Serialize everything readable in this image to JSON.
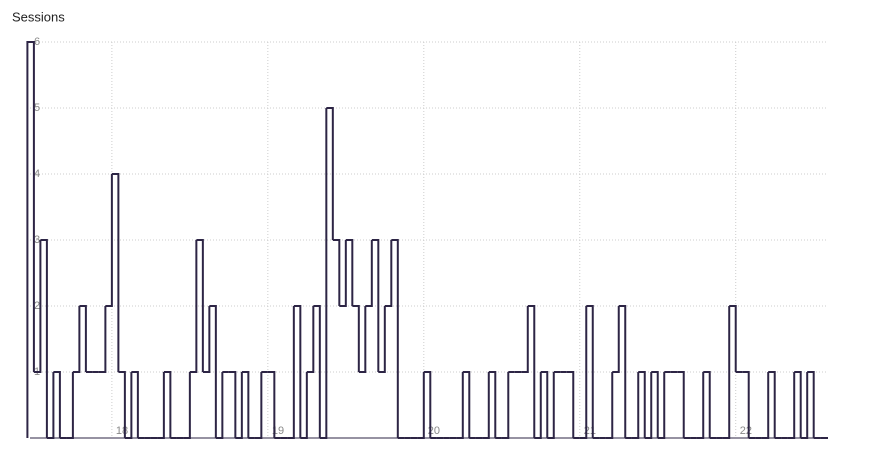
{
  "chart_data": {
    "type": "step",
    "title": "Sessions",
    "x": [
      11,
      12,
      13,
      14,
      15,
      16,
      17,
      18,
      19,
      20,
      21,
      22,
      23,
      24,
      25,
      26,
      27,
      28,
      29,
      30,
      31,
      32,
      33,
      34,
      35,
      36,
      37,
      38,
      39,
      40,
      41,
      42,
      43,
      44,
      45,
      46,
      47,
      48,
      49,
      50,
      51,
      52,
      53,
      54,
      55,
      56,
      57,
      58,
      59,
      60,
      61,
      62,
      63,
      64,
      65,
      66,
      67,
      68,
      69,
      70,
      71,
      72,
      73,
      74,
      75,
      76,
      77,
      78,
      79,
      80,
      81,
      82,
      83,
      84,
      85,
      86,
      87,
      88,
      89,
      90,
      91,
      92,
      93,
      94,
      95,
      96,
      97,
      98,
      99,
      100,
      101,
      102,
      103,
      104,
      105,
      106,
      107,
      108,
      109,
      110,
      111,
      112,
      113,
      114,
      115,
      116,
      117,
      118,
      119,
      120,
      121,
      122,
      123,
      124,
      125,
      126,
      127,
      128,
      129,
      130,
      131,
      132,
      133
    ],
    "series": [
      {
        "name": "Sessions",
        "color": "#2d2545",
        "values": [
          6,
          1,
          3,
          0,
          1,
          0,
          0,
          1,
          2,
          1,
          1,
          1,
          2,
          4,
          1,
          0,
          1,
          0,
          0,
          0,
          0,
          1,
          0,
          0,
          0,
          1,
          3,
          1,
          2,
          0,
          1,
          1,
          0,
          1,
          0,
          0,
          1,
          1,
          0,
          0,
          0,
          2,
          0,
          1,
          2,
          0,
          5,
          3,
          2,
          3,
          2,
          1,
          2,
          3,
          1,
          2,
          3,
          0,
          0,
          0,
          0,
          1,
          0,
          0,
          0,
          0,
          0,
          1,
          0,
          0,
          0,
          1,
          0,
          0,
          1,
          1,
          1,
          2,
          0,
          1,
          0,
          1,
          1,
          1,
          0,
          0,
          2,
          0,
          0,
          0,
          1,
          2,
          0,
          0,
          1,
          0,
          1,
          0,
          1,
          1,
          1,
          0,
          0,
          0,
          1,
          0,
          0,
          0,
          2,
          1,
          1,
          0,
          0,
          0,
          1,
          0,
          0,
          0,
          1,
          0,
          1,
          0,
          0
        ]
      }
    ],
    "xlim": [
      11.4,
      134.2
    ],
    "xticks": [
      {
        "value": 24,
        "label": "18"
      },
      {
        "value": 48,
        "label": "19"
      },
      {
        "value": 72,
        "label": "20"
      },
      {
        "value": 96,
        "label": "21"
      },
      {
        "value": 120,
        "label": "22"
      }
    ],
    "ylim": [
      0,
      6
    ],
    "yticks": [
      1,
      2,
      3,
      4,
      5,
      6
    ],
    "grid": true
  }
}
